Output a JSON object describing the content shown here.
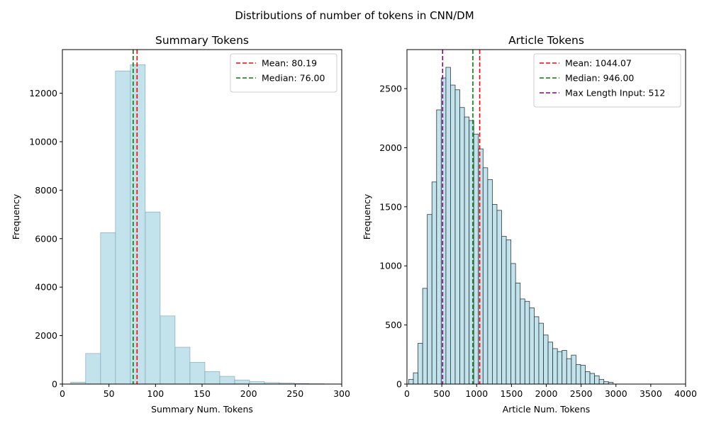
{
  "figure": {
    "title": "Distributions of number of tokens in CNN/DM"
  },
  "chart_data": [
    {
      "type": "bar",
      "title": "Summary Tokens",
      "xlabel": "Summary Num. Tokens",
      "ylabel": "Frequency",
      "xlim": [
        0,
        300
      ],
      "ylim": [
        0,
        13800
      ],
      "xticks": [
        0,
        50,
        100,
        150,
        200,
        250,
        300
      ],
      "yticks": [
        0,
        2000,
        4000,
        6000,
        8000,
        10000,
        12000
      ],
      "bin_width": 16,
      "bin_starts": [
        9,
        25,
        41,
        57,
        73,
        89,
        105,
        121,
        137,
        153,
        169,
        185,
        201,
        217,
        233,
        249,
        265,
        281
      ],
      "values": [
        80,
        1260,
        6250,
        12920,
        13180,
        7100,
        2810,
        1520,
        900,
        520,
        320,
        170,
        100,
        60,
        40,
        25,
        15,
        8
      ],
      "bar_color": "#add8e6",
      "bar_alpha": 0.75,
      "vlines": [
        {
          "x": 80.19,
          "color": "#ff0000",
          "label": "Mean: 80.19"
        },
        {
          "x": 76.0,
          "color": "#008000",
          "label": "Median: 76.00"
        }
      ],
      "legend": "top-right",
      "grid": false
    },
    {
      "type": "bar",
      "title": "Article Tokens",
      "xlabel": "Article Num. Tokens",
      "ylabel": "Frequency",
      "xlim": [
        0,
        4000
      ],
      "ylim": [
        0,
        2830
      ],
      "xticks": [
        0,
        500,
        1000,
        1500,
        2000,
        2500,
        3000,
        3500,
        4000
      ],
      "yticks": [
        0,
        500,
        1000,
        1500,
        2000,
        2500
      ],
      "bin_width": 66.7,
      "bin_start": 25,
      "values": [
        40,
        95,
        345,
        810,
        1435,
        1710,
        2320,
        2590,
        2680,
        2530,
        2490,
        2340,
        2260,
        2230,
        2115,
        1990,
        1830,
        1730,
        1520,
        1470,
        1250,
        1220,
        1020,
        855,
        720,
        700,
        645,
        570,
        515,
        415,
        355,
        300,
        275,
        285,
        215,
        245,
        165,
        160,
        105,
        90,
        70,
        40,
        20,
        15
      ],
      "bar_color": "#add8e6",
      "bar_alpha": 0.75,
      "vlines": [
        {
          "x": 1044.07,
          "color": "#ff0000",
          "label": "Mean: 1044.07"
        },
        {
          "x": 946.0,
          "color": "#008000",
          "label": "Median: 946.00"
        },
        {
          "x": 512,
          "color": "#800080",
          "label": "Max Length Input: 512"
        }
      ],
      "legend": "top-right",
      "grid": false
    }
  ]
}
